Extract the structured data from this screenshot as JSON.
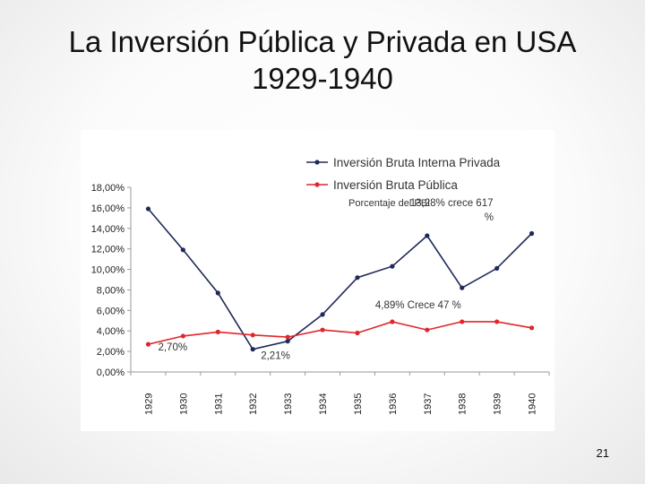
{
  "slide": {
    "title_line1": "La Inversión Pública y Privada en USA",
    "title_line2": "1929-1940",
    "page_number": "21"
  },
  "chart_data": {
    "type": "line",
    "title": "",
    "subtitle": "Porcentaje del PBI",
    "xlabel": "",
    "ylabel": "",
    "categories": [
      "1929",
      "1930",
      "1931",
      "1932",
      "1933",
      "1934",
      "1935",
      "1936",
      "1937",
      "1938",
      "1939",
      "1940"
    ],
    "ylim": [
      0,
      18
    ],
    "yticks": [
      0,
      2,
      4,
      6,
      8,
      10,
      12,
      14,
      16,
      18
    ],
    "ytick_labels": [
      "0,00%",
      "2,00%",
      "4,00%",
      "6,00%",
      "8,00%",
      "10,00%",
      "12,00%",
      "14,00%",
      "16,00%",
      "18,00%"
    ],
    "grid": false,
    "legend_position": "top-right",
    "series": [
      {
        "name": "Inversión Bruta Interna Privada",
        "color": "#1f2a5a",
        "values": [
          15.9,
          11.9,
          7.7,
          2.21,
          3.0,
          5.6,
          9.2,
          10.3,
          13.28,
          8.2,
          10.1,
          13.5
        ]
      },
      {
        "name": "Inversión Bruta Pública",
        "color": "#e0262b",
        "values": [
          2.7,
          3.5,
          3.9,
          3.6,
          3.4,
          4.1,
          3.8,
          4.89,
          4.1,
          4.9,
          4.9,
          4.3
        ]
      }
    ],
    "annotations": [
      {
        "id": "ann-private-1932",
        "series": 0,
        "index": 3,
        "text": "2,21%"
      },
      {
        "id": "ann-public-1929",
        "series": 1,
        "index": 0,
        "text": "2,70%"
      },
      {
        "id": "ann-public-1936",
        "series": 1,
        "index": 7,
        "text": "4,89% Crece 47 %"
      },
      {
        "id": "ann-private-1937",
        "series": 0,
        "index": 8,
        "lines": [
          "13,28% crece 617",
          "%"
        ]
      }
    ]
  }
}
